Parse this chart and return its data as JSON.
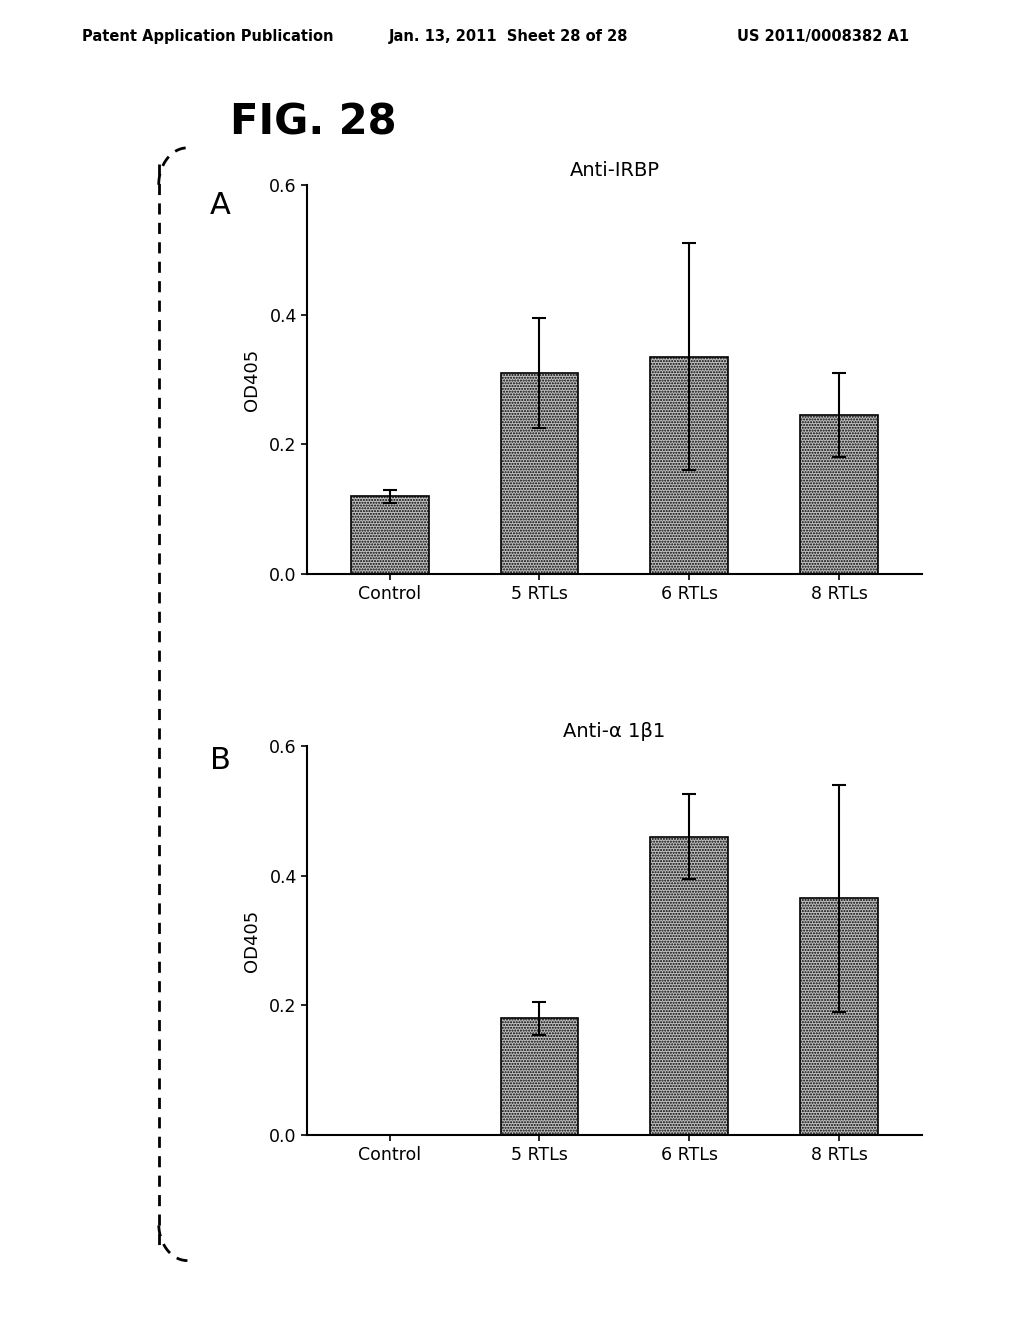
{
  "fig_label": "FIG. 28",
  "panel_A": {
    "label": "A",
    "title": "Anti-IRBP",
    "ylabel": "OD405",
    "categories": [
      "Control",
      "5 RTLs",
      "6 RTLs",
      "8 RTLs"
    ],
    "values": [
      0.12,
      0.31,
      0.335,
      0.245
    ],
    "errors": [
      0.01,
      0.085,
      0.175,
      0.065
    ],
    "ylim": [
      0.0,
      0.6
    ],
    "yticks": [
      0.0,
      0.2,
      0.4,
      0.6
    ]
  },
  "panel_B": {
    "label": "B",
    "title": "Anti-α 1β1",
    "ylabel": "OD405",
    "categories": [
      "Control",
      "5 RTLs",
      "6 RTLs",
      "8 RTLs"
    ],
    "values": [
      0.0,
      0.18,
      0.46,
      0.365
    ],
    "errors": [
      0.0,
      0.025,
      0.065,
      0.175
    ],
    "ylim": [
      0.0,
      0.6
    ],
    "yticks": [
      0.0,
      0.2,
      0.4,
      0.6
    ]
  },
  "header_left": "Patent Application Publication",
  "header_mid": "Jan. 13, 2011  Sheet 28 of 28",
  "header_right": "US 2011/0008382 A1",
  "background_color": "#ffffff"
}
